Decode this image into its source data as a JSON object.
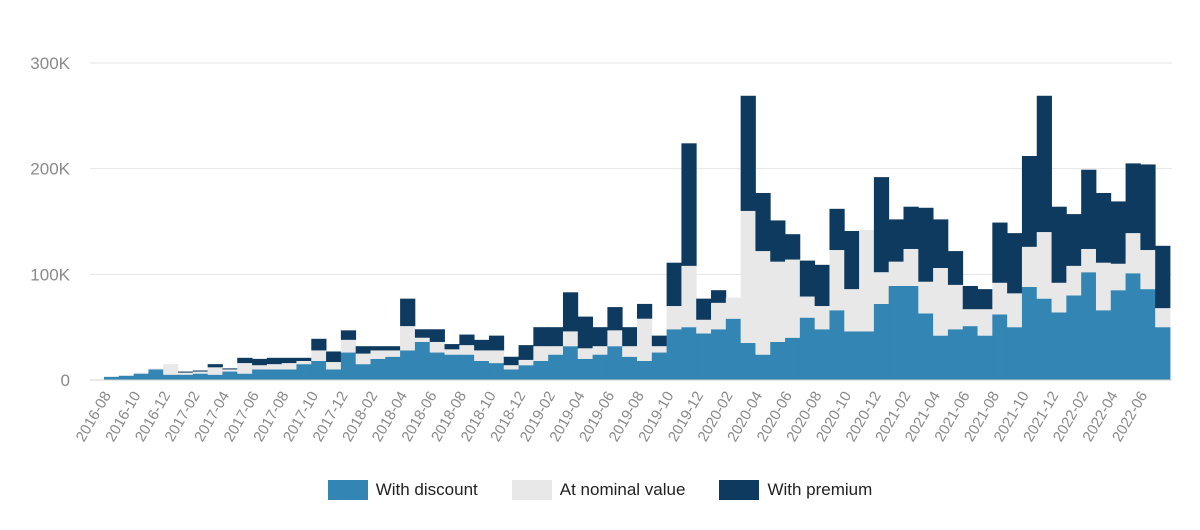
{
  "chart_data": {
    "type": "bar",
    "stacked": true,
    "y_ticks": [
      "0",
      "100K",
      "200K",
      "300K"
    ],
    "ylim": [
      0,
      300000
    ],
    "grid": true,
    "legend_position": "bottom",
    "categories": [
      "2016-08",
      "2016-09",
      "2016-10",
      "2016-11",
      "2016-12",
      "2017-01",
      "2017-02",
      "2017-03",
      "2017-04",
      "2017-05",
      "2017-06",
      "2017-07",
      "2017-08",
      "2017-09",
      "2017-10",
      "2017-11",
      "2017-12",
      "2018-01",
      "2018-02",
      "2018-03",
      "2018-04",
      "2018-05",
      "2018-06",
      "2018-07",
      "2018-08",
      "2018-09",
      "2018-10",
      "2018-11",
      "2018-12",
      "2019-01",
      "2019-02",
      "2019-03",
      "2019-04",
      "2019-05",
      "2019-06",
      "2019-07",
      "2019-08",
      "2019-09",
      "2019-10",
      "2019-11",
      "2019-12",
      "2020-01",
      "2020-02",
      "2020-03",
      "2020-04",
      "2020-05",
      "2020-06",
      "2020-07",
      "2020-08",
      "2020-09",
      "2020-10",
      "2020-11",
      "2020-12",
      "2021-01",
      "2021-02",
      "2021-03",
      "2021-04",
      "2021-05",
      "2021-06",
      "2021-07",
      "2021-08",
      "2021-09",
      "2021-10",
      "2021-11",
      "2021-12",
      "2022-01",
      "2022-02",
      "2022-03",
      "2022-04",
      "2022-05",
      "2022-06",
      "2022-07"
    ],
    "tick_labels": [
      "2016-08",
      "2016-10",
      "2016-12",
      "2017-02",
      "2017-04",
      "2017-06",
      "2017-08",
      "2017-10",
      "2017-12",
      "2018-02",
      "2018-04",
      "2018-06",
      "2018-08",
      "2018-10",
      "2018-12",
      "2019-02",
      "2019-04",
      "2019-06",
      "2019-08",
      "2019-10",
      "2019-12",
      "2020-02",
      "2020-04",
      "2020-06",
      "2020-08",
      "2020-10",
      "2020-12",
      "2021-02",
      "2021-04",
      "2021-06",
      "2021-08",
      "2021-10",
      "2021-12",
      "2022-02",
      "2022-04",
      "2022-06"
    ],
    "series": [
      {
        "name": "With discount",
        "color": "#3385b3",
        "values": [
          3000,
          4000,
          6000,
          10000,
          5000,
          5000,
          6000,
          5000,
          8000,
          6000,
          10000,
          10000,
          10000,
          15000,
          18000,
          10000,
          26000,
          15000,
          20000,
          22000,
          28000,
          36000,
          26000,
          24000,
          24000,
          18000,
          16000,
          10000,
          14000,
          18000,
          24000,
          32000,
          20000,
          24000,
          32000,
          22000,
          18000,
          26000,
          48000,
          50000,
          44000,
          48000,
          58000,
          35000,
          24000,
          36000,
          40000,
          59000,
          48000,
          66000,
          46000,
          46000,
          72000,
          89000,
          89000,
          63000,
          42000,
          48000,
          51000,
          42000,
          62000,
          50000,
          88000,
          77000,
          64000,
          80000,
          102000,
          66000,
          85000,
          101000,
          86000,
          50000
        ]
      },
      {
        "name": "At nominal value",
        "color": "#e8e8e8",
        "values": [
          0,
          0,
          1000,
          1000,
          10000,
          2000,
          2000,
          7000,
          2000,
          10000,
          4000,
          5000,
          6000,
          3000,
          10000,
          7000,
          12000,
          10000,
          8000,
          6000,
          23000,
          4000,
          10000,
          5000,
          9000,
          10000,
          12000,
          4000,
          5000,
          14000,
          8000,
          14000,
          10000,
          8000,
          15000,
          10000,
          40000,
          6000,
          22000,
          58000,
          13000,
          25000,
          20000,
          125000,
          98000,
          76000,
          74000,
          20000,
          22000,
          57000,
          40000,
          96000,
          30000,
          23000,
          35000,
          30000,
          64000,
          42000,
          16000,
          25000,
          30000,
          32000,
          38000,
          63000,
          28000,
          28000,
          22000,
          45000,
          25000,
          38000,
          37000,
          18000
        ]
      },
      {
        "name": "With premium",
        "color": "#0f3a5f",
        "values": [
          0,
          0,
          0,
          0,
          0,
          1000,
          1000,
          3000,
          1000,
          5000,
          6000,
          6000,
          5000,
          3000,
          11000,
          10000,
          9000,
          7000,
          4000,
          4000,
          26000,
          8000,
          12000,
          5000,
          10000,
          10000,
          14000,
          8000,
          14000,
          18000,
          18000,
          37000,
          30000,
          18000,
          22000,
          18000,
          14000,
          10000,
          41000,
          116000,
          20000,
          12000,
          0,
          109000,
          55000,
          39000,
          24000,
          34000,
          39000,
          39000,
          55000,
          0,
          90000,
          40000,
          40000,
          70000,
          46000,
          32000,
          22000,
          19000,
          57000,
          57000,
          86000,
          129000,
          72000,
          49000,
          75000,
          66000,
          59000,
          66000,
          81000,
          59000
        ]
      }
    ]
  },
  "legend": {
    "items": [
      {
        "label": "With discount",
        "color": "#3385b3"
      },
      {
        "label": "At nominal value",
        "color": "#e8e8e8"
      },
      {
        "label": "With premium",
        "color": "#0f3a5f"
      }
    ]
  }
}
